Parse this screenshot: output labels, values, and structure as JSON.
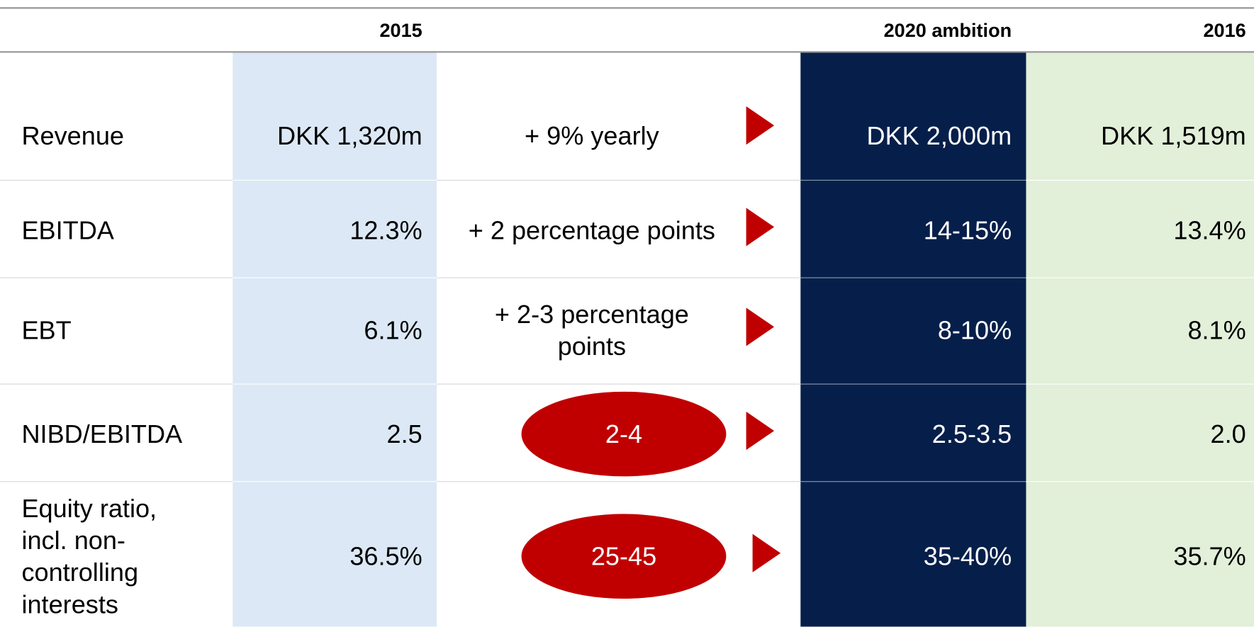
{
  "table": {
    "header": [
      "2015",
      "2020 ambition",
      "2016"
    ],
    "rows": [
      {
        "label": "Revenue",
        "base": "DKK 1,320m",
        "change": "+ 9% yearly",
        "target": "DKK 2,000m",
        "actual": "DKK 1,519m",
        "highlighted": false
      },
      {
        "label": "EBITDA",
        "base": "12.3%",
        "change": "+ 2 percentage points",
        "target": "14-15%",
        "actual": "13.4%",
        "highlighted": false
      },
      {
        "label": "EBT",
        "base": "6.1%",
        "change": "+ 2-3 percentage points",
        "target": "8-10%",
        "actual": "8.1%",
        "highlighted": false
      },
      {
        "label": "NIBD/EBITDA",
        "base": "2.5",
        "change": "2-4",
        "target": "2.5-3.5",
        "actual": "2.0",
        "highlighted": true
      },
      {
        "label": "Equity ratio, incl. non-controlling interests",
        "base": "36.5%",
        "change": "25-45",
        "target": "35-40%",
        "actual": "35.7%",
        "highlighted": true
      }
    ]
  }
}
